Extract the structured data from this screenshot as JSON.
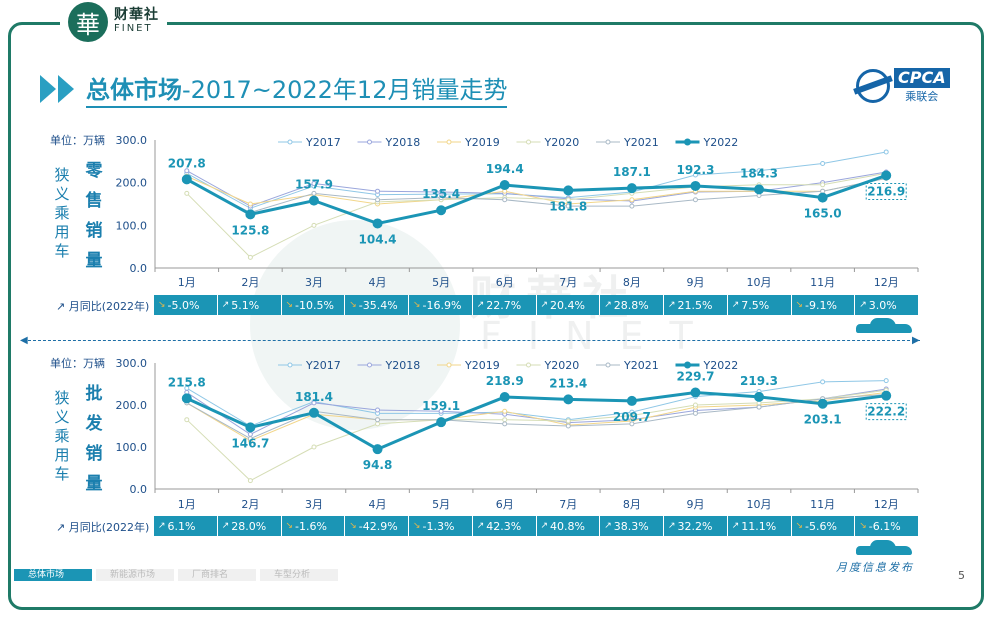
{
  "brand": {
    "logo_glyph": "華",
    "cn": "财華社",
    "en": "FINET"
  },
  "title": {
    "main": "总体市场",
    "rest": "-2017~2022年12月销量走势"
  },
  "cpca": {
    "en": "CPCA",
    "cn": "乘联会"
  },
  "watermark": {
    "cn": "财華社",
    "en": "FINET"
  },
  "chart_data": [
    {
      "type": "line",
      "unit_label": "单位：万辆",
      "side_label": [
        "狭义乘用车"
      ],
      "metric_label": [
        "零",
        "售",
        "销",
        "量"
      ],
      "categories": [
        "1月",
        "2月",
        "3月",
        "4月",
        "5月",
        "6月",
        "7月",
        "8月",
        "9月",
        "10月",
        "11月",
        "12月"
      ],
      "ylim": [
        0,
        300
      ],
      "yticks": [
        "0.0",
        "100.0",
        "200.0",
        "300.0"
      ],
      "series": [
        {
          "name": "Y2017",
          "color": "#8fc7e6",
          "values": [
            222,
            140,
            192,
            172,
            173,
            174,
            165,
            178,
            218,
            228,
            245,
            272
          ]
        },
        {
          "name": "Y2018",
          "color": "#9aa6dc",
          "values": [
            228,
            145,
            198,
            180,
            178,
            175,
            162,
            157,
            178,
            180,
            200,
            225
          ]
        },
        {
          "name": "Y2019",
          "color": "#f2d68a",
          "values": [
            215,
            150,
            172,
            150,
            160,
            180,
            150,
            160,
            180,
            180,
            180,
            210
          ]
        },
        {
          "name": "Y2020",
          "color": "#d5ddb5",
          "values": [
            175,
            25,
            100,
            155,
            160,
            165,
            160,
            175,
            190,
            195,
            195,
            222
          ]
        },
        {
          "name": "Y2021",
          "color": "#a9b9c6",
          "values": [
            205,
            130,
            175,
            160,
            165,
            160,
            145,
            145,
            160,
            170,
            180,
            210
          ]
        },
        {
          "name": "Y2022",
          "color": "#1b95b5",
          "values": [
            207.8,
            125.8,
            157.9,
            104.4,
            135.4,
            194.4,
            181.8,
            187.1,
            192.3,
            184.3,
            165.0,
            216.9
          ],
          "labels": [
            "207.8",
            "125.8",
            "157.9",
            "104.4",
            "135.4",
            "194.4",
            "181.8",
            "187.1",
            "192.3",
            "184.3",
            "165.0",
            "216.9"
          ]
        }
      ],
      "yoy_label": "月同比(2022年)",
      "yoy": [
        {
          "v": "-5.0%",
          "up": false
        },
        {
          "v": "5.1%",
          "up": true
        },
        {
          "v": "-10.5%",
          "up": false
        },
        {
          "v": "-35.4%",
          "up": false
        },
        {
          "v": "-16.9%",
          "up": false
        },
        {
          "v": "22.7%",
          "up": true
        },
        {
          "v": "20.4%",
          "up": true
        },
        {
          "v": "28.8%",
          "up": true
        },
        {
          "v": "21.5%",
          "up": true
        },
        {
          "v": "7.5%",
          "up": true
        },
        {
          "v": "-9.1%",
          "up": false
        },
        {
          "v": "3.0%",
          "up": true
        }
      ]
    },
    {
      "type": "line",
      "unit_label": "单位：万辆",
      "side_label": [
        "狭义乘用车"
      ],
      "metric_label": [
        "批",
        "发",
        "销",
        "量"
      ],
      "categories": [
        "1月",
        "2月",
        "3月",
        "4月",
        "5月",
        "6月",
        "7月",
        "8月",
        "9月",
        "10月",
        "11月",
        "12月"
      ],
      "ylim": [
        0,
        300
      ],
      "yticks": [
        "0.0",
        "100.0",
        "200.0",
        "300.0"
      ],
      "series": [
        {
          "name": "Y2017",
          "color": "#8fc7e6",
          "values": [
            240,
            150,
            208,
            180,
            180,
            183,
            165,
            183,
            220,
            232,
            255,
            258
          ]
        },
        {
          "name": "Y2018",
          "color": "#9aa6dc",
          "values": [
            230,
            130,
            205,
            188,
            185,
            178,
            158,
            165,
            187,
            195,
            215,
            238
          ]
        },
        {
          "name": "Y2019",
          "color": "#f2d68a",
          "values": [
            205,
            115,
            178,
            165,
            165,
            185,
            152,
            162,
            195,
            200,
            210,
            230
          ]
        },
        {
          "name": "Y2020",
          "color": "#d5ddb5",
          "values": [
            165,
            20,
            100,
            155,
            165,
            165,
            162,
            175,
            200,
            205,
            215,
            235
          ]
        },
        {
          "name": "Y2021",
          "color": "#a9b9c6",
          "values": [
            205,
            120,
            185,
            165,
            165,
            155,
            150,
            155,
            180,
            195,
            215,
            225
          ]
        },
        {
          "name": "Y2022",
          "color": "#1b95b5",
          "values": [
            215.8,
            146.7,
            181.4,
            94.8,
            159.1,
            218.9,
            213.4,
            209.7,
            229.7,
            219.3,
            203.1,
            222.2
          ],
          "labels": [
            "215.8",
            "146.7",
            "181.4",
            "94.8",
            "159.1",
            "218.9",
            "213.4",
            "209.7",
            "229.7",
            "219.3",
            "203.1",
            "222.2"
          ]
        }
      ],
      "yoy_label": "月同比(2022年)",
      "yoy": [
        {
          "v": "6.1%",
          "up": true
        },
        {
          "v": "28.0%",
          "up": true
        },
        {
          "v": "-1.6%",
          "up": false
        },
        {
          "v": "-42.9%",
          "up": false
        },
        {
          "v": "-1.3%",
          "up": false
        },
        {
          "v": "42.3%",
          "up": true
        },
        {
          "v": "40.8%",
          "up": true
        },
        {
          "v": "38.3%",
          "up": true
        },
        {
          "v": "32.2%",
          "up": true
        },
        {
          "v": "11.1%",
          "up": true
        },
        {
          "v": "-5.6%",
          "up": false
        },
        {
          "v": "-6.1%",
          "up": false
        }
      ]
    }
  ],
  "footer": {
    "tabs": [
      "总体市场",
      "新能源市场",
      "厂商排名",
      "车型分析"
    ],
    "right_text": "月度信息发布",
    "page": "5"
  }
}
